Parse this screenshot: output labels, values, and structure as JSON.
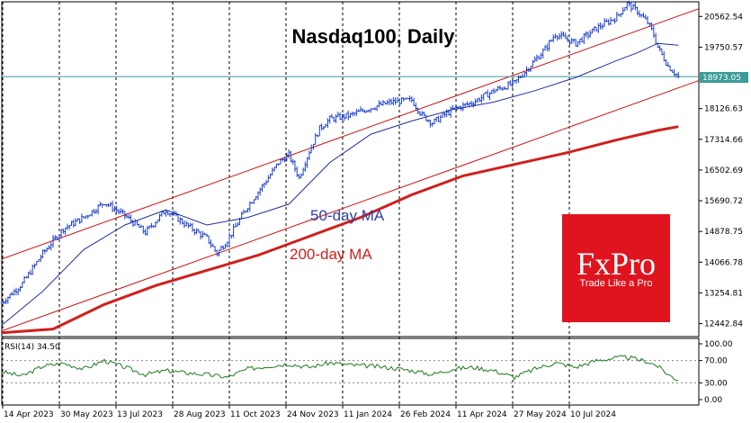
{
  "chart_data": {
    "type": "line",
    "title": "Nasdaq100, Daily",
    "price_axis": {
      "ylim": [
        12100,
        20950
      ],
      "ticks": [
        "20562.54",
        "19750.57",
        "18126.63",
        "17314.66",
        "16502.69",
        "15690.72",
        "14878.75",
        "14066.78",
        "13254.81",
        "12442.84"
      ],
      "current_price_label": "18973.05",
      "current_price": 18973.05
    },
    "x_labels": [
      "14 Apr 2023",
      "30 May 2023",
      "13 Jul 2023",
      "28 Aug 2023",
      "11 Oct 2023",
      "24 Nov 2023",
      "11 Jan 2024",
      "26 Feb 2024",
      "11 Apr 2024",
      "27 May 2024",
      "10 Jul 2024"
    ],
    "xlim": [
      0,
      68
    ],
    "price_series": {
      "x": [
        0,
        2,
        4,
        6,
        8,
        10,
        12,
        14,
        16,
        18,
        20,
        21,
        22,
        24,
        26,
        27,
        28,
        29,
        30,
        31,
        32,
        34,
        36,
        38,
        40,
        41,
        42,
        44,
        46,
        48,
        50,
        52,
        53,
        54,
        56,
        58,
        60,
        61,
        62,
        63,
        63.5,
        64,
        65,
        66
      ],
      "y": [
        13000,
        13500,
        14300,
        14950,
        15250,
        15650,
        15300,
        14850,
        15450,
        15050,
        14700,
        14300,
        14650,
        15550,
        16300,
        16700,
        16900,
        16300,
        17000,
        17600,
        17850,
        17950,
        18150,
        18300,
        18350,
        17950,
        17750,
        18100,
        18300,
        18600,
        18800,
        19400,
        19700,
        20100,
        19850,
        20250,
        20550,
        20900,
        20700,
        20400,
        20150,
        19750,
        19250,
        18973
      ]
    },
    "ma50": {
      "name": "50-day MA",
      "x": [
        0,
        4,
        8,
        12,
        16,
        20,
        24,
        28,
        32,
        36,
        40,
        44,
        48,
        52,
        56,
        60,
        62,
        64,
        66
      ],
      "y": [
        12400,
        13300,
        14400,
        15050,
        15450,
        15050,
        15250,
        15600,
        16700,
        17450,
        17800,
        18100,
        18300,
        18600,
        18950,
        19400,
        19600,
        19850,
        19800
      ]
    },
    "ma200": {
      "name": "200-day MA",
      "x": [
        0,
        5,
        10,
        15,
        20,
        25,
        30,
        35,
        40,
        45,
        50,
        55,
        60,
        64,
        66
      ],
      "y": [
        12200,
        12300,
        12950,
        13450,
        13850,
        14250,
        14750,
        15250,
        15850,
        16350,
        16650,
        16950,
        17300,
        17550,
        17650
      ]
    },
    "channel": {
      "upper": {
        "x": [
          0,
          75
        ],
        "y": [
          14150,
          21450
        ]
      },
      "lower": {
        "x": [
          0,
          75
        ],
        "y": [
          12250,
          19550
        ]
      }
    },
    "rsi": {
      "label": "RSI(14) 34.50",
      "value": 34.5,
      "ylim": [
        0,
        100
      ],
      "ticks": [
        "100.00",
        "70.00",
        "30.00",
        "0.00"
      ],
      "x": [
        0,
        2,
        4,
        6,
        8,
        10,
        12,
        14,
        16,
        18,
        20,
        22,
        24,
        26,
        28,
        30,
        32,
        34,
        36,
        38,
        40,
        42,
        44,
        46,
        48,
        50,
        52,
        54,
        56,
        58,
        60,
        61,
        62,
        63,
        64,
        65,
        66
      ],
      "y": [
        50,
        42,
        60,
        65,
        55,
        70,
        58,
        45,
        52,
        48,
        45,
        40,
        55,
        60,
        64,
        58,
        66,
        62,
        60,
        57,
        52,
        45,
        55,
        58,
        52,
        40,
        55,
        66,
        58,
        70,
        75,
        76,
        72,
        68,
        60,
        45,
        34.5
      ]
    },
    "annotations": [
      "50-day MA",
      "200-day MA"
    ],
    "grid": "vertical dashed",
    "legend": "none"
  },
  "logo": {
    "name": "FxPro",
    "tagline": "Trade Like a Pro",
    "color": "#e0141e"
  },
  "colors": {
    "candles": "#1a3ec8",
    "ma50": "#1f2fa0",
    "ma200": "#d0201c",
    "channel": "#cc1010",
    "price_line": "#3a9c97",
    "rsi": "#1f7a1f"
  }
}
